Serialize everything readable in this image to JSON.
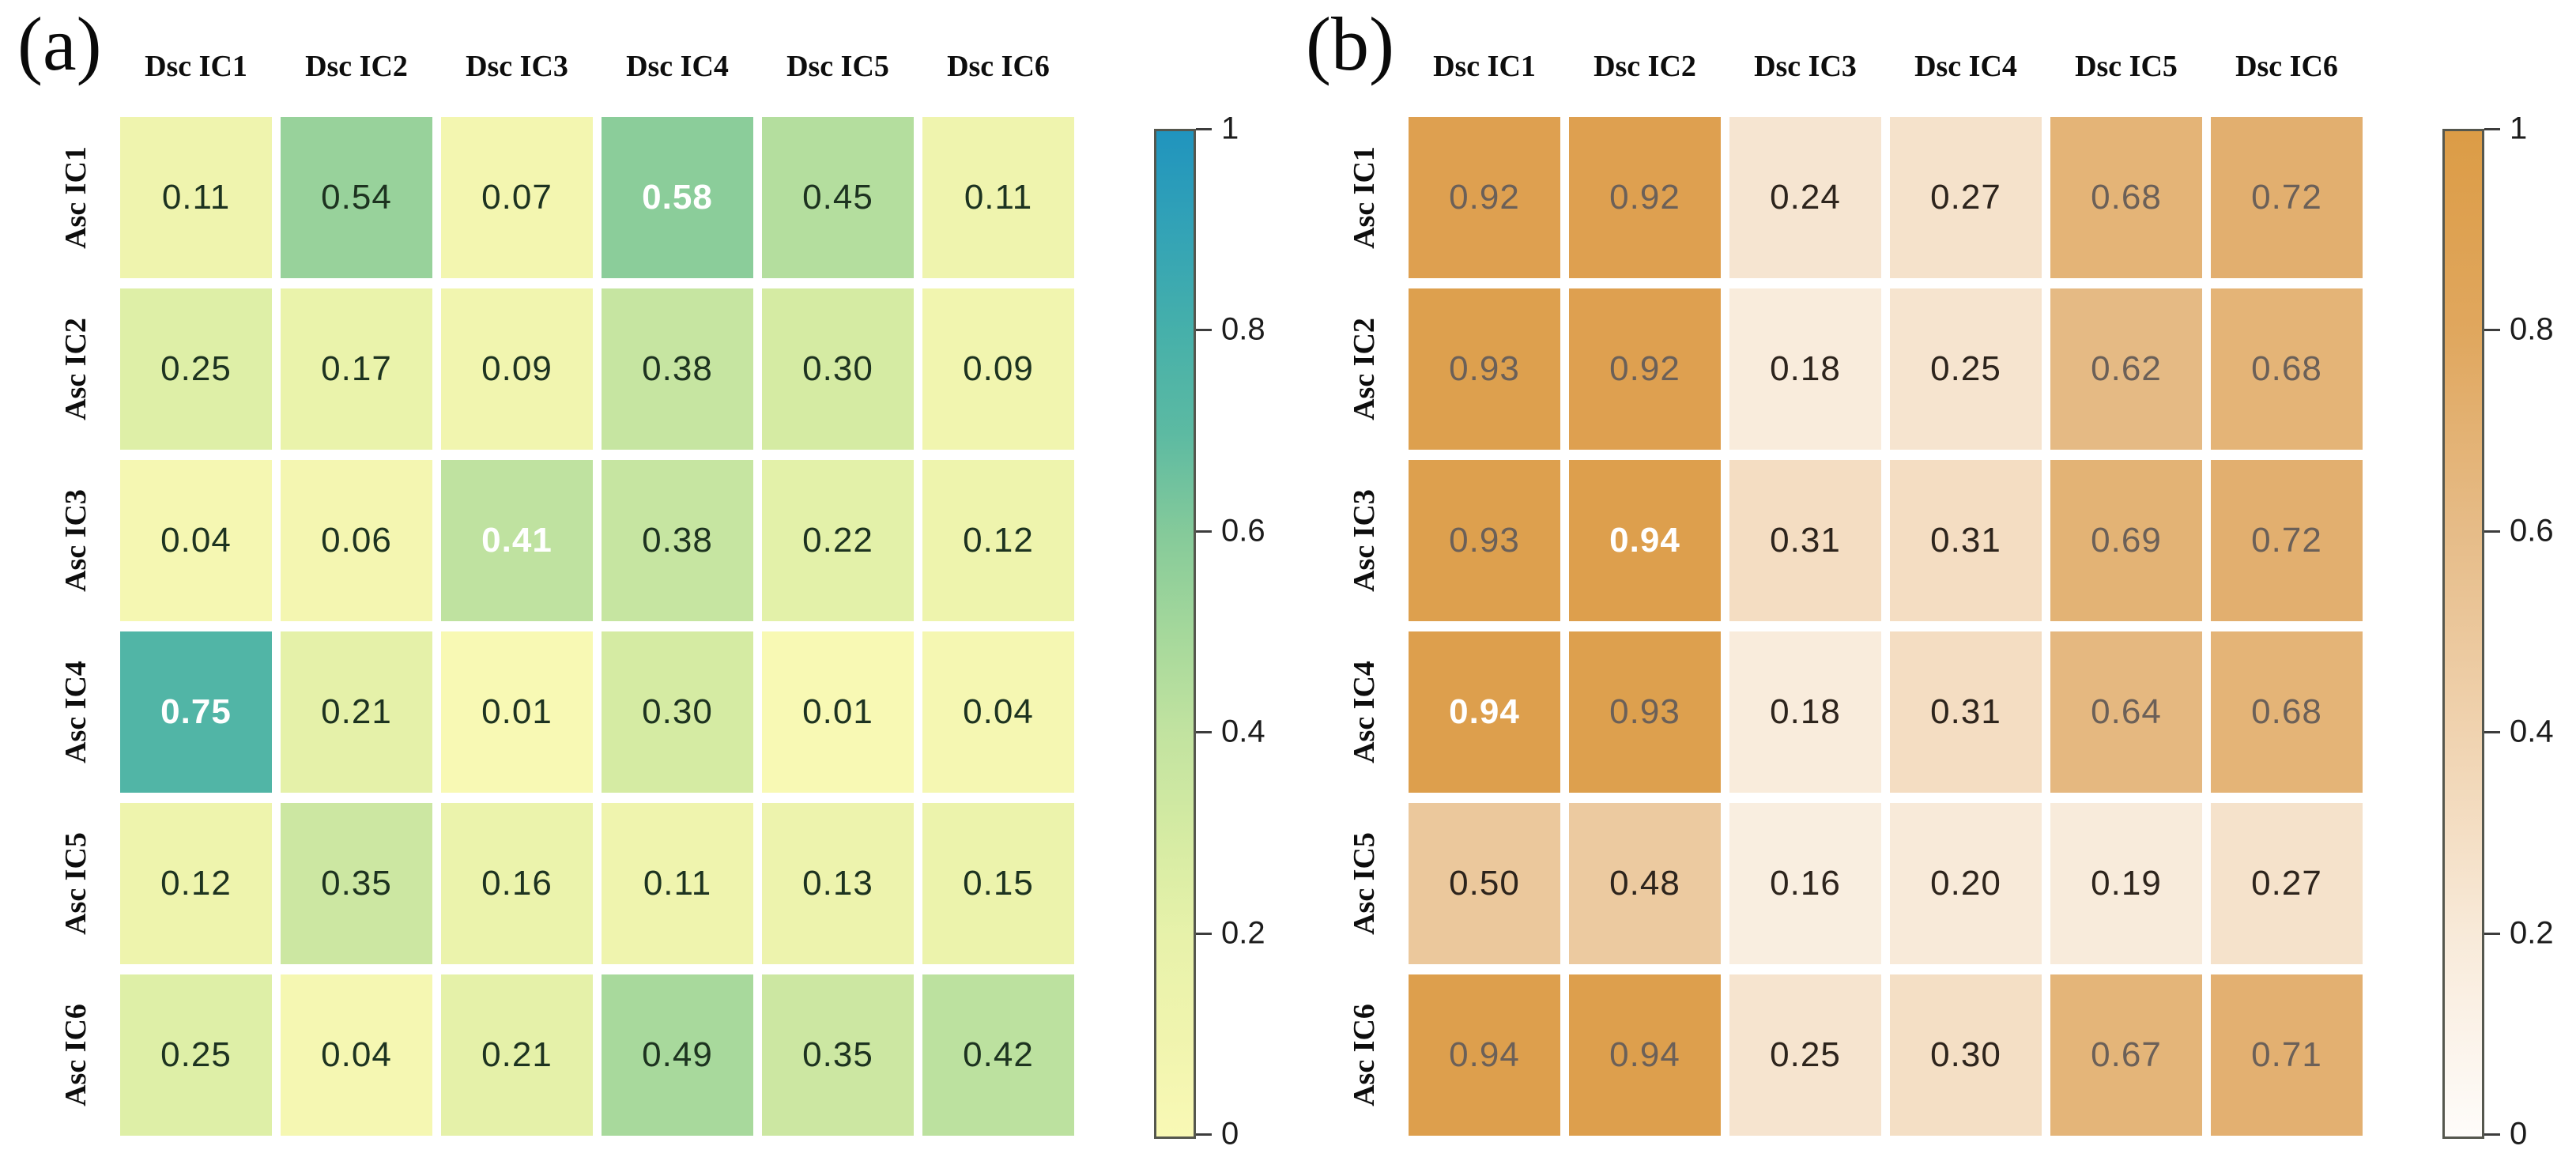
{
  "chart_data": [
    {
      "type": "heatmap",
      "panel_label": "(a)",
      "x_categories": [
        "Dsc IC1",
        "Dsc IC2",
        "Dsc IC3",
        "Dsc IC4",
        "Dsc IC5",
        "Dsc IC6"
      ],
      "y_categories": [
        "Asc IC1",
        "Asc IC2",
        "Asc IC3",
        "Asc IC4",
        "Asc IC5",
        "Asc IC6"
      ],
      "values": [
        [
          0.11,
          0.54,
          0.07,
          0.58,
          0.45,
          0.11
        ],
        [
          0.25,
          0.17,
          0.09,
          0.38,
          0.3,
          0.09
        ],
        [
          0.04,
          0.06,
          0.41,
          0.38,
          0.22,
          0.12
        ],
        [
          0.75,
          0.21,
          0.01,
          0.3,
          0.01,
          0.04
        ],
        [
          0.12,
          0.35,
          0.16,
          0.11,
          0.13,
          0.15
        ],
        [
          0.25,
          0.04,
          0.21,
          0.49,
          0.35,
          0.42
        ]
      ],
      "value_labels": [
        [
          "0.11",
          "0.54",
          "0.07",
          "0.58",
          "0.45",
          "0.11"
        ],
        [
          "0.25",
          "0.17",
          "0.09",
          "0.38",
          "0.30",
          "0.09"
        ],
        [
          "0.04",
          "0.06",
          "0.41",
          "0.38",
          "0.22",
          "0.12"
        ],
        [
          "0.75",
          "0.21",
          "0.01",
          "0.30",
          "0.01",
          "0.04"
        ],
        [
          "0.12",
          "0.35",
          "0.16",
          "0.11",
          "0.13",
          "0.15"
        ],
        [
          "0.25",
          "0.04",
          "0.21",
          "0.49",
          "0.35",
          "0.42"
        ]
      ],
      "white_bold_cells": [
        [
          0,
          3
        ],
        [
          2,
          2
        ],
        [
          3,
          0
        ]
      ],
      "number_color_default": "#1d3320",
      "number_color_high": null,
      "high_value_threshold": null,
      "colormap": {
        "positions": [
          0,
          0.1,
          0.2,
          0.3,
          0.4,
          0.5,
          0.6,
          0.7,
          0.8,
          0.9,
          1
        ],
        "colors": [
          "#f9f9b5",
          "#f0f4ae",
          "#e7f2aa",
          "#d5eba3",
          "#c2e3a0",
          "#a5d89b",
          "#85ca9a",
          "#5cbaa2",
          "#46b0aa",
          "#33a3b6",
          "#2094be"
        ]
      },
      "colorbar_range": [
        0,
        1
      ],
      "colorbar_ticks": [
        {
          "value": 1,
          "label": "1"
        },
        {
          "value": 0.8,
          "label": "0.8"
        },
        {
          "value": 0.6,
          "label": "0.6"
        },
        {
          "value": 0.4,
          "label": "0.4"
        },
        {
          "value": 0.2,
          "label": "0.2"
        },
        {
          "value": 0,
          "label": "0"
        }
      ],
      "grid": true,
      "legend_position": "right-colorbar"
    },
    {
      "type": "heatmap",
      "panel_label": "(b)",
      "x_categories": [
        "Dsc IC1",
        "Dsc IC2",
        "Dsc IC3",
        "Dsc IC4",
        "Dsc IC5",
        "Dsc IC6"
      ],
      "y_categories": [
        "Asc IC1",
        "Asc IC2",
        "Asc IC3",
        "Asc IC4",
        "Asc IC5",
        "Asc IC6"
      ],
      "values": [
        [
          0.92,
          0.92,
          0.24,
          0.27,
          0.68,
          0.72
        ],
        [
          0.93,
          0.92,
          0.18,
          0.25,
          0.62,
          0.68
        ],
        [
          0.93,
          0.94,
          0.31,
          0.31,
          0.69,
          0.72
        ],
        [
          0.94,
          0.93,
          0.18,
          0.31,
          0.64,
          0.68
        ],
        [
          0.5,
          0.48,
          0.16,
          0.2,
          0.19,
          0.27
        ],
        [
          0.94,
          0.94,
          0.25,
          0.3,
          0.67,
          0.71
        ]
      ],
      "value_labels": [
        [
          "0.92",
          "0.92",
          "0.24",
          "0.27",
          "0.68",
          "0.72"
        ],
        [
          "0.93",
          "0.92",
          "0.18",
          "0.25",
          "0.62",
          "0.68"
        ],
        [
          "0.93",
          "0.94",
          "0.31",
          "0.31",
          "0.69",
          "0.72"
        ],
        [
          "0.94",
          "0.93",
          "0.18",
          "0.31",
          "0.64",
          "0.68"
        ],
        [
          "0.50",
          "0.48",
          "0.16",
          "0.20",
          "0.19",
          "0.27"
        ],
        [
          "0.94",
          "0.94",
          "0.25",
          "0.30",
          "0.67",
          "0.71"
        ]
      ],
      "white_bold_cells": [
        [
          2,
          1
        ],
        [
          3,
          0
        ]
      ],
      "number_color_default": "#2d241c",
      "number_color_high": "#6b6058",
      "high_value_threshold": 0.6,
      "colormap": {
        "positions": [
          0,
          0.2,
          0.4,
          0.6,
          0.8,
          1
        ],
        "colors": [
          "#fefcfa",
          "#f8ead9",
          "#f0d3b0",
          "#e6bc88",
          "#e0a75e",
          "#dc9c46"
        ]
      },
      "colorbar_range": [
        0,
        1
      ],
      "colorbar_ticks": [
        {
          "value": 1,
          "label": "1"
        },
        {
          "value": 0.8,
          "label": "0.8"
        },
        {
          "value": 0.6,
          "label": "0.6"
        },
        {
          "value": 0.4,
          "label": "0.4"
        },
        {
          "value": 0.2,
          "label": "0.2"
        },
        {
          "value": 0,
          "label": "0"
        }
      ],
      "grid": true,
      "legend_position": "right-colorbar"
    }
  ]
}
